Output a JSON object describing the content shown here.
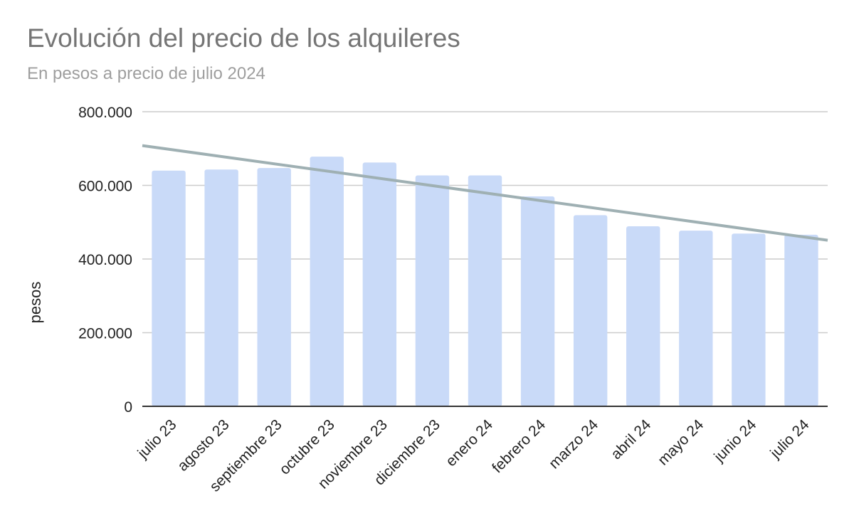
{
  "chart_data": {
    "type": "bar",
    "title": "Evolución del precio de los alquileres",
    "subtitle": "En pesos a precio de julio 2024",
    "xlabel": "",
    "ylabel": "pesos",
    "categories": [
      "julio 23",
      "agosto 23",
      "septiembre 23",
      "octubre 23",
      "noviembre 23",
      "diciembre 23",
      "enero 24",
      "febrero 24",
      "marzo 24",
      "abril 24",
      "mayo 24",
      "junio 24",
      "julio 24"
    ],
    "series": [
      {
        "values": [
          640000,
          643000,
          647000,
          678000,
          662000,
          627000,
          627000,
          570000,
          519000,
          489000,
          477000,
          469000,
          466000
        ]
      }
    ],
    "trendline": {
      "type": "linear",
      "start_value": 708000,
      "end_value": 451000
    },
    "ylim": [
      0,
      800000
    ],
    "yticks": [
      0,
      200000,
      400000,
      600000,
      800000
    ],
    "ytick_labels": [
      "0",
      "200.000",
      "400.000",
      "600.000",
      "800.000"
    ],
    "grid": true,
    "legend": "none",
    "colors": {
      "bar": "#c9daf8",
      "trendline": "#9fb0b3",
      "grid": "#cccccc",
      "axis": "#333333"
    }
  }
}
